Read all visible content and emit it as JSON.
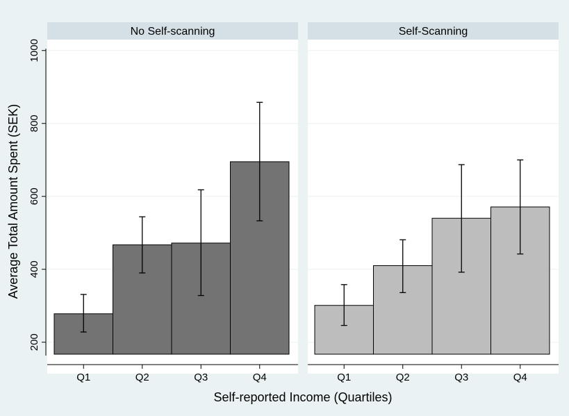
{
  "chart_data": {
    "type": "bar",
    "ylabel": "Average Total Amount Spent (SEK)",
    "xlabel": "Self-reported Income (Quartiles)",
    "ylim": [
      150,
      1030
    ],
    "yticks": [
      200,
      400,
      600,
      800,
      1000
    ],
    "categories": [
      "Q1",
      "Q2",
      "Q3",
      "Q4"
    ],
    "grid": true,
    "panels": [
      {
        "title": "No Self-scanning",
        "color": "#737373",
        "values": [
          278,
          467,
          472,
          695
        ],
        "ci_low": [
          228,
          390,
          328,
          533
        ],
        "ci_high": [
          331,
          544,
          618,
          858
        ]
      },
      {
        "title": "Self-Scanning",
        "color": "#bdbdbd",
        "values": [
          301,
          410,
          540,
          571
        ],
        "ci_low": [
          246,
          336,
          392,
          442
        ],
        "ci_high": [
          358,
          481,
          687,
          700
        ]
      }
    ]
  }
}
